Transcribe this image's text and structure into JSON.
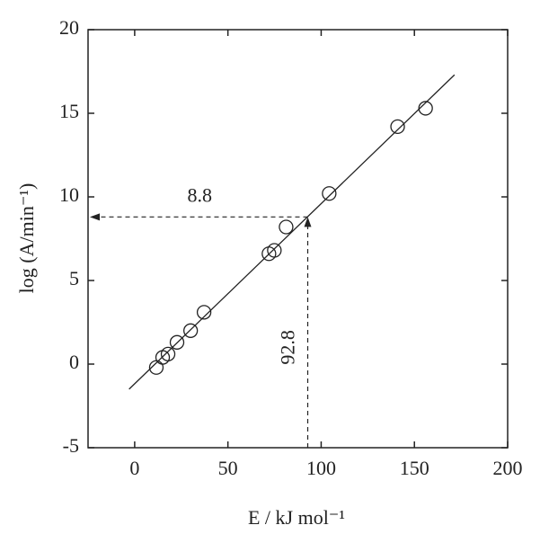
{
  "chart_data": {
    "type": "scatter",
    "xlabel": "E /  kJ mol⁻¹",
    "ylabel": "log (A/min⁻¹)",
    "x": [
      11.6,
      15,
      17.9,
      22.7,
      30,
      37.2,
      72,
      74.9,
      81.2,
      104.3,
      141,
      156
    ],
    "series": [
      {
        "values": [
          -0.2,
          0.4,
          0.6,
          1.3,
          2.0,
          3.1,
          6.6,
          6.8,
          8.2,
          10.2,
          14.2,
          15.3
        ],
        "color": "#222222"
      }
    ],
    "fit": {
      "x": [
        -3,
        171.5
      ],
      "y": [
        -1.5,
        17.3
      ]
    },
    "guide": {
      "x": 92.8,
      "y": 8.8
    },
    "xlim": [
      -25,
      200
    ],
    "ylim": [
      -5,
      20
    ],
    "xticks": [
      0,
      50,
      100,
      150,
      200
    ],
    "yticks": [
      -5,
      0,
      5,
      10,
      15,
      20
    ]
  }
}
